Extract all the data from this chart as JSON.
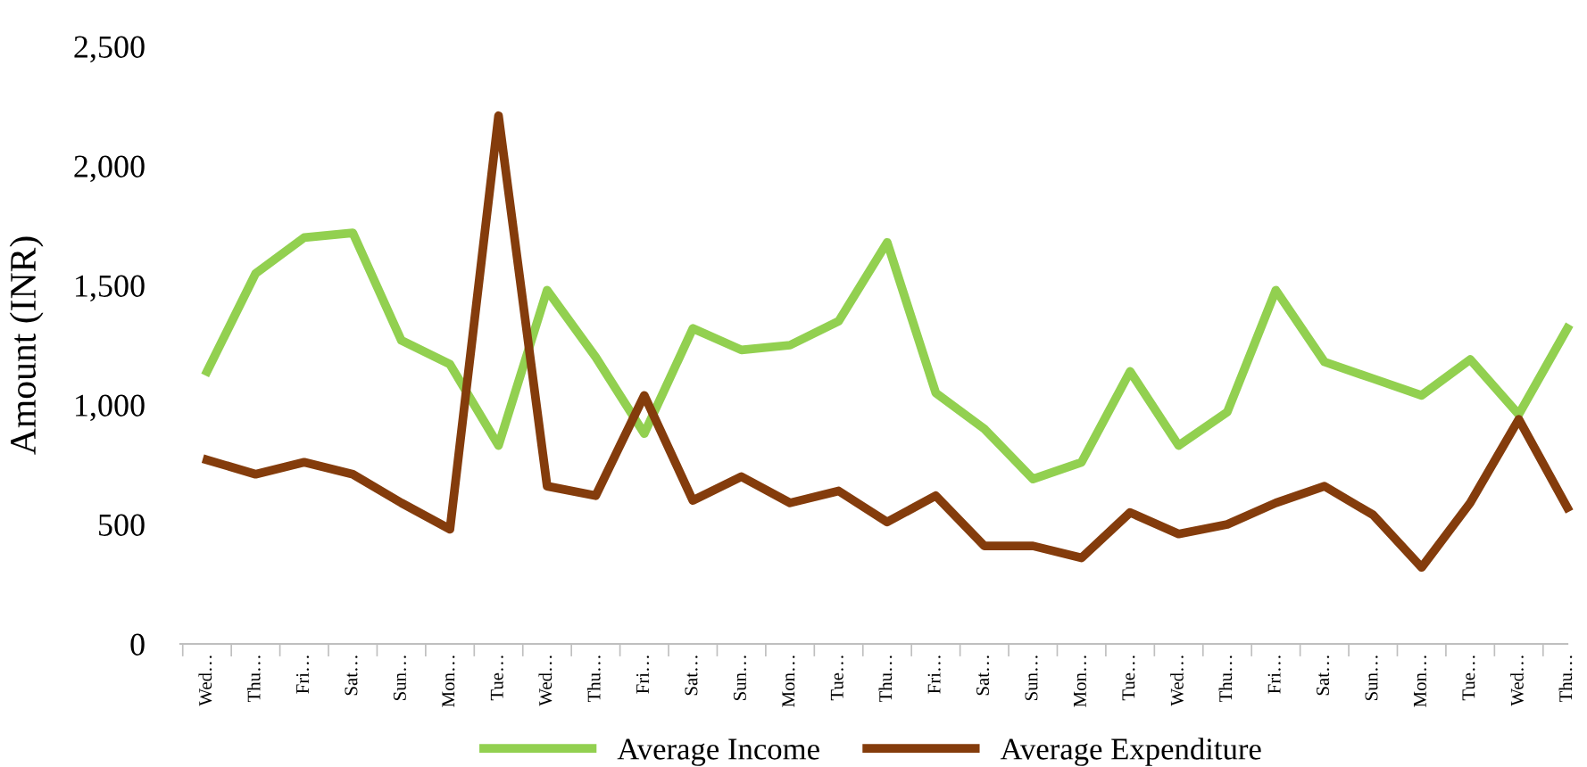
{
  "chart_data": {
    "type": "line",
    "ylabel": "Amount (INR)",
    "categories": [
      "Wed…",
      "Thu…",
      "Fri…",
      "Sat…",
      "Sun…",
      "Mon…",
      "Tue…",
      "Wed…",
      "Thu…",
      "Fri…",
      "Sat…",
      "Sun…",
      "Mon…",
      "Tue…",
      "Thu…",
      "Fri…",
      "Sat…",
      "Sun…",
      "Mon…",
      "Tue…",
      "Wed…",
      "Thu…",
      "Fri…",
      "Sat…",
      "Sun…",
      "Mon…",
      "Tue…",
      "Wed…",
      "Thu…"
    ],
    "series": [
      {
        "name": "Average Income",
        "color": "#92d050",
        "values": [
          1140,
          1550,
          1700,
          1720,
          1270,
          1170,
          830,
          1480,
          1200,
          880,
          1320,
          1230,
          1250,
          1350,
          1680,
          1050,
          900,
          690,
          760,
          1140,
          830,
          970,
          1480,
          1180,
          1110,
          1040,
          1190,
          960,
          1320
        ]
      },
      {
        "name": "Average Expenditure",
        "color": "#843c0c",
        "values": [
          770,
          710,
          760,
          710,
          590,
          480,
          2210,
          660,
          620,
          1040,
          600,
          700,
          590,
          640,
          510,
          620,
          410,
          410,
          360,
          550,
          460,
          500,
          590,
          660,
          540,
          320,
          590,
          940,
          570
        ]
      }
    ],
    "ylim": [
      0,
      2500
    ],
    "yticks": [
      {
        "value": 0,
        "label": "0"
      },
      {
        "value": 500,
        "label": "500"
      },
      {
        "value": 1000,
        "label": "1,000"
      },
      {
        "value": 1500,
        "label": "1,500"
      },
      {
        "value": 2000,
        "label": "2,000"
      },
      {
        "value": 2500,
        "label": "2,500"
      }
    ],
    "grid": false,
    "legend": "bottom",
    "line_style": "solid",
    "marker": "none"
  }
}
